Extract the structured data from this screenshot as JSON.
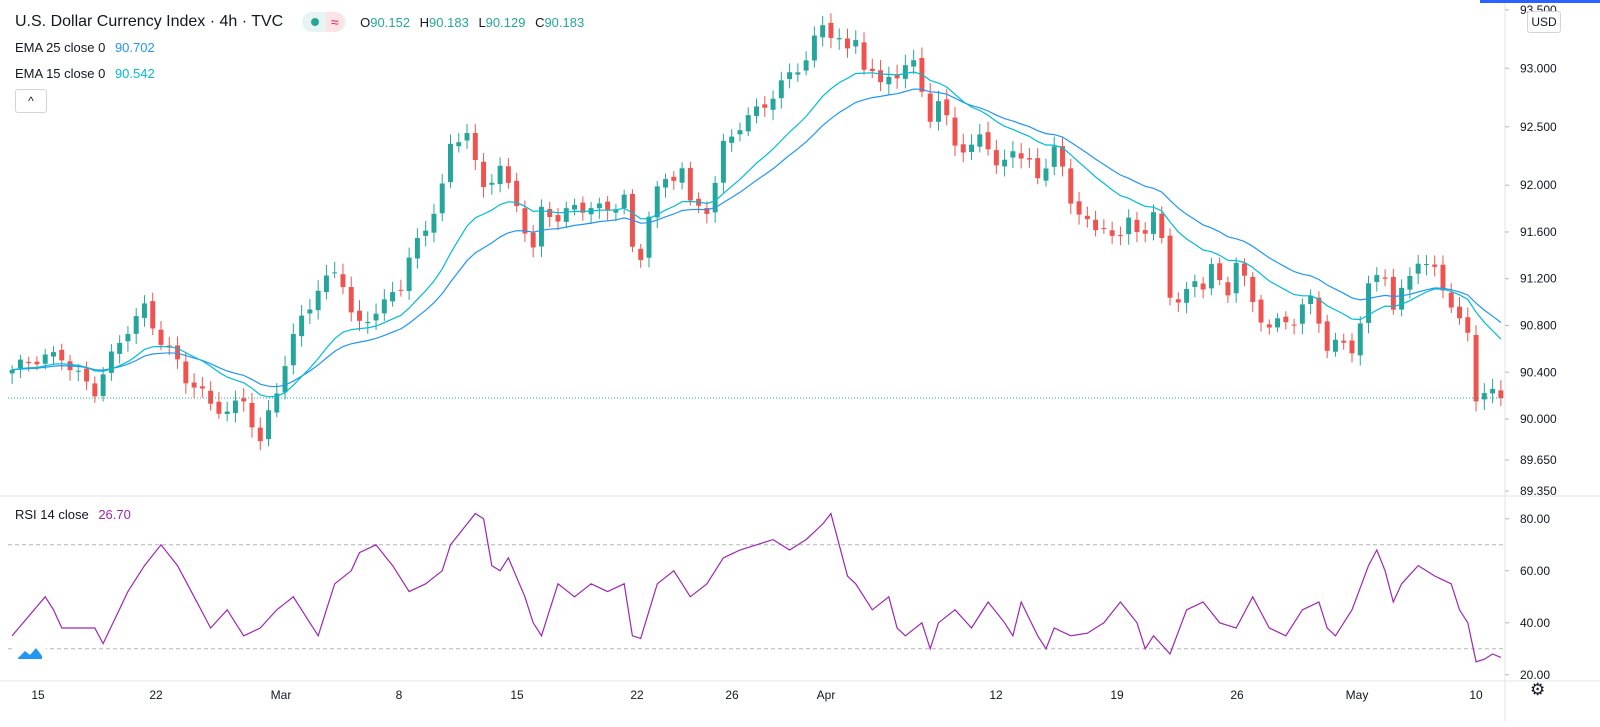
{
  "header": {
    "symbol_title": "U.S. Dollar Currency Index · 4h · TVC",
    "ohlc": {
      "o_label": "O",
      "o": "90.152",
      "h_label": "H",
      "h": "90.183",
      "l_label": "L",
      "l": "90.129",
      "c_label": "C",
      "c": "90.183"
    },
    "wave_glyph": "≈"
  },
  "indicators": {
    "ema25": {
      "label": "EMA 25 close 0",
      "value": "90.702",
      "color": "#2196f3"
    },
    "ema15": {
      "label": "EMA 15 close 0",
      "value": "90.542",
      "color": "#00bcd4"
    },
    "rsi": {
      "label": "RSI 14 close",
      "value": "26.70",
      "color": "#9c27b0"
    }
  },
  "buttons": {
    "collapse_glyph": "^",
    "currency": "USD",
    "settings_glyph": "⚙"
  },
  "colors": {
    "up": "#26a69a",
    "down": "#ef5350",
    "last_price_line": "#26a69a",
    "grid": "#f0f3fa",
    "band": "#b2b5be"
  },
  "chart_data": {
    "type": "candlestick",
    "title": "U.S. Dollar Currency Index · 4h · TVC",
    "price_axis": {
      "ticks": [
        "93.500",
        "93.000",
        "92.500",
        "92.000",
        "91.600",
        "91.200",
        "90.800",
        "90.400",
        "90.000",
        "89.650",
        "89.350"
      ],
      "ylim": [
        89.35,
        93.55
      ]
    },
    "rsi_axis": {
      "ticks": [
        "80.00",
        "60.00",
        "40.00",
        "20.00"
      ],
      "ylim": [
        18,
        88
      ],
      "bands": [
        70,
        30
      ]
    },
    "x_ticks": [
      "15",
      "22",
      "Mar",
      "8",
      "15",
      "22",
      "26",
      "Apr",
      "12",
      "19",
      "26",
      "May",
      "10"
    ],
    "last_price": 90.18,
    "close_path": [
      [
        0,
        90.42
      ],
      [
        6,
        90.55
      ],
      [
        8,
        90.4
      ],
      [
        10,
        90.25
      ],
      [
        11,
        90.38
      ],
      [
        14,
        90.75
      ],
      [
        16,
        90.95
      ],
      [
        18,
        90.7
      ],
      [
        20,
        90.5
      ],
      [
        21,
        90.35
      ],
      [
        24,
        90.1
      ],
      [
        26,
        90.05
      ],
      [
        28,
        90.2
      ],
      [
        29,
        90.0
      ],
      [
        30,
        89.8
      ],
      [
        31,
        90.05
      ],
      [
        33,
        90.45
      ],
      [
        35,
        90.85
      ],
      [
        37,
        91.1
      ],
      [
        39,
        91.3
      ],
      [
        40,
        91.2
      ],
      [
        41,
        90.9
      ],
      [
        42,
        90.8
      ],
      [
        43,
        90.85
      ],
      [
        45,
        90.95
      ],
      [
        47,
        91.15
      ],
      [
        48,
        91.4
      ],
      [
        50,
        91.65
      ],
      [
        52,
        92.0
      ],
      [
        53,
        92.3
      ],
      [
        55,
        92.45
      ],
      [
        56,
        92.15
      ],
      [
        57,
        91.95
      ],
      [
        59,
        92.2
      ],
      [
        60,
        92.0
      ],
      [
        61,
        91.85
      ],
      [
        62,
        91.65
      ],
      [
        63,
        91.45
      ],
      [
        64,
        91.75
      ],
      [
        66,
        91.7
      ],
      [
        68,
        91.8
      ],
      [
        70,
        91.85
      ],
      [
        72,
        91.8
      ],
      [
        74,
        91.9
      ],
      [
        75,
        91.4
      ],
      [
        76,
        91.35
      ],
      [
        77,
        91.75
      ],
      [
        78,
        91.95
      ],
      [
        80,
        92.1
      ],
      [
        81,
        92.2
      ],
      [
        82,
        91.85
      ],
      [
        84,
        91.8
      ],
      [
        85,
        92.0
      ],
      [
        86,
        92.3
      ],
      [
        88,
        92.5
      ],
      [
        90,
        92.65
      ],
      [
        92,
        92.8
      ],
      [
        94,
        92.95
      ],
      [
        96,
        93.05
      ],
      [
        97,
        93.2
      ],
      [
        98,
        93.35
      ],
      [
        99,
        93.3
      ],
      [
        100,
        93.25
      ],
      [
        101,
        93.15
      ],
      [
        102,
        93.3
      ],
      [
        103,
        93.05
      ],
      [
        104,
        92.95
      ],
      [
        105,
        92.85
      ],
      [
        106,
        92.95
      ],
      [
        107,
        92.9
      ],
      [
        108,
        92.95
      ],
      [
        109,
        93.05
      ],
      [
        110,
        92.85
      ],
      [
        111,
        92.55
      ],
      [
        112,
        92.7
      ],
      [
        113,
        92.65
      ],
      [
        114,
        92.4
      ],
      [
        115,
        92.25
      ],
      [
        116,
        92.3
      ],
      [
        117,
        92.45
      ],
      [
        118,
        92.3
      ],
      [
        119,
        92.1
      ],
      [
        120,
        92.2
      ],
      [
        121,
        92.35
      ],
      [
        122,
        92.25
      ],
      [
        123,
        92.2
      ],
      [
        124,
        92.1
      ],
      [
        125,
        92.2
      ],
      [
        126,
        92.3
      ],
      [
        127,
        92.1
      ],
      [
        128,
        91.85
      ],
      [
        129,
        91.75
      ],
      [
        130,
        91.65
      ],
      [
        131,
        91.6
      ],
      [
        132,
        91.7
      ],
      [
        133,
        91.6
      ],
      [
        134,
        91.55
      ],
      [
        135,
        91.75
      ],
      [
        136,
        91.65
      ],
      [
        137,
        91.55
      ],
      [
        138,
        91.7
      ],
      [
        139,
        91.55
      ],
      [
        140,
        91.05
      ],
      [
        141,
        90.95
      ],
      [
        142,
        91.1
      ],
      [
        143,
        91.25
      ],
      [
        144,
        91.15
      ],
      [
        145,
        91.3
      ],
      [
        146,
        91.2
      ],
      [
        147,
        91.1
      ],
      [
        148,
        91.3
      ],
      [
        149,
        91.15
      ],
      [
        150,
        91.0
      ],
      [
        151,
        90.85
      ],
      [
        152,
        90.75
      ],
      [
        153,
        90.85
      ],
      [
        154,
        90.9
      ],
      [
        155,
        90.85
      ],
      [
        156,
        90.95
      ],
      [
        157,
        91.05
      ],
      [
        158,
        90.85
      ],
      [
        159,
        90.55
      ],
      [
        160,
        90.6
      ],
      [
        161,
        90.65
      ],
      [
        162,
        90.6
      ],
      [
        163,
        90.8
      ],
      [
        164,
        91.15
      ],
      [
        165,
        91.3
      ],
      [
        166,
        91.25
      ],
      [
        167,
        90.9
      ],
      [
        168,
        91.1
      ],
      [
        169,
        91.25
      ],
      [
        170,
        91.3
      ],
      [
        171,
        91.25
      ],
      [
        172,
        91.3
      ],
      [
        173,
        91.15
      ],
      [
        174,
        90.95
      ],
      [
        175,
        90.85
      ],
      [
        176,
        90.8
      ],
      [
        177,
        90.2
      ],
      [
        178,
        90.18
      ],
      [
        179,
        90.22
      ],
      [
        180,
        90.18
      ]
    ],
    "ema_range": {
      "from": 0,
      "to": 180
    },
    "rsi_path": [
      [
        0,
        35
      ],
      [
        4,
        50
      ],
      [
        5,
        45
      ],
      [
        6,
        38
      ],
      [
        10,
        38
      ],
      [
        11,
        32
      ],
      [
        14,
        52
      ],
      [
        16,
        62
      ],
      [
        18,
        70
      ],
      [
        20,
        62
      ],
      [
        22,
        50
      ],
      [
        24,
        38
      ],
      [
        26,
        45
      ],
      [
        28,
        35
      ],
      [
        30,
        38
      ],
      [
        32,
        45
      ],
      [
        34,
        50
      ],
      [
        36,
        40
      ],
      [
        37,
        35
      ],
      [
        39,
        55
      ],
      [
        41,
        60
      ],
      [
        42,
        67
      ],
      [
        44,
        70
      ],
      [
        46,
        62
      ],
      [
        48,
        52
      ],
      [
        50,
        55
      ],
      [
        52,
        60
      ],
      [
        53,
        70
      ],
      [
        55,
        78
      ],
      [
        56,
        82
      ],
      [
        57,
        80
      ],
      [
        58,
        62
      ],
      [
        59,
        60
      ],
      [
        60,
        65
      ],
      [
        62,
        50
      ],
      [
        63,
        40
      ],
      [
        64,
        35
      ],
      [
        66,
        55
      ],
      [
        68,
        50
      ],
      [
        70,
        55
      ],
      [
        72,
        52
      ],
      [
        74,
        55
      ],
      [
        75,
        35
      ],
      [
        76,
        34
      ],
      [
        78,
        55
      ],
      [
        80,
        60
      ],
      [
        82,
        50
      ],
      [
        84,
        55
      ],
      [
        86,
        65
      ],
      [
        88,
        68
      ],
      [
        90,
        70
      ],
      [
        92,
        72
      ],
      [
        94,
        68
      ],
      [
        96,
        72
      ],
      [
        98,
        78
      ],
      [
        99,
        82
      ],
      [
        100,
        70
      ],
      [
        101,
        58
      ],
      [
        102,
        55
      ],
      [
        104,
        45
      ],
      [
        106,
        50
      ],
      [
        107,
        38
      ],
      [
        108,
        35
      ],
      [
        110,
        40
      ],
      [
        111,
        30
      ],
      [
        112,
        40
      ],
      [
        114,
        45
      ],
      [
        116,
        38
      ],
      [
        118,
        48
      ],
      [
        120,
        40
      ],
      [
        121,
        35
      ],
      [
        122,
        48
      ],
      [
        124,
        35
      ],
      [
        125,
        30
      ],
      [
        126,
        38
      ],
      [
        128,
        35
      ],
      [
        130,
        36
      ],
      [
        132,
        40
      ],
      [
        134,
        48
      ],
      [
        136,
        40
      ],
      [
        137,
        30
      ],
      [
        138,
        35
      ],
      [
        140,
        28
      ],
      [
        142,
        45
      ],
      [
        144,
        48
      ],
      [
        146,
        40
      ],
      [
        148,
        38
      ],
      [
        150,
        50
      ],
      [
        152,
        38
      ],
      [
        154,
        35
      ],
      [
        156,
        45
      ],
      [
        158,
        48
      ],
      [
        159,
        38
      ],
      [
        160,
        35
      ],
      [
        162,
        45
      ],
      [
        164,
        62
      ],
      [
        165,
        68
      ],
      [
        166,
        60
      ],
      [
        167,
        48
      ],
      [
        168,
        55
      ],
      [
        170,
        62
      ],
      [
        172,
        58
      ],
      [
        174,
        55
      ],
      [
        175,
        45
      ],
      [
        176,
        40
      ],
      [
        177,
        25
      ],
      [
        178,
        26
      ],
      [
        179,
        28
      ],
      [
        180,
        26.7
      ]
    ]
  }
}
